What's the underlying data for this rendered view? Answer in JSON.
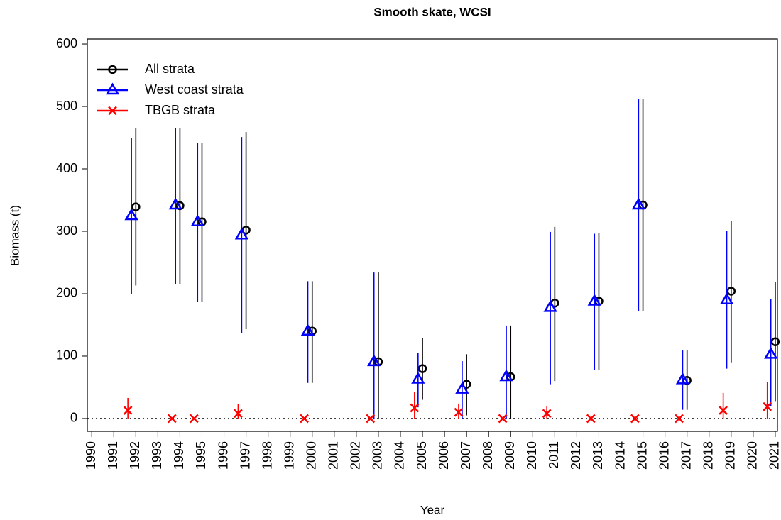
{
  "chart_data": {
    "type": "scatter",
    "title": "Smooth skate, WCSI",
    "x_label": "Year",
    "y_label": "Biomass (t)",
    "x": [
      1992,
      1994,
      1995,
      1997,
      2000,
      2003,
      2005,
      2007,
      2009,
      2011,
      2013,
      2015,
      2017,
      2019,
      2021
    ],
    "series": [
      {
        "name": "All strata",
        "color": "#000000",
        "marker": "circle",
        "values": [
          339,
          341,
          315,
          302,
          140,
          91,
          80,
          55,
          67,
          185,
          188,
          342,
          61,
          204,
          123
        ],
        "lower": [
          213,
          215,
          187,
          143,
          57,
          0,
          30,
          5,
          0,
          60,
          78,
          172,
          14,
          90,
          28
        ],
        "upper": [
          466,
          465,
          441,
          459,
          220,
          234,
          129,
          103,
          149,
          307,
          297,
          512,
          109,
          316,
          219
        ]
      },
      {
        "name": "West coast strata",
        "color": "#0000ff",
        "marker": "triangle",
        "values": [
          325,
          342,
          315,
          294,
          140,
          91,
          63,
          47,
          67,
          178,
          188,
          342,
          62,
          190,
          103
        ],
        "lower": [
          200,
          215,
          187,
          137,
          57,
          0,
          18,
          0,
          0,
          55,
          78,
          172,
          14,
          80,
          20
        ],
        "upper": [
          450,
          465,
          441,
          451,
          220,
          234,
          105,
          92,
          149,
          299,
          296,
          512,
          109,
          300,
          191
        ]
      },
      {
        "name": "TBGB strata",
        "color": "#ff0000",
        "marker": "x",
        "values": [
          13,
          0,
          0,
          8,
          0,
          0,
          17,
          10,
          0,
          8,
          0,
          0,
          0,
          13,
          19
        ],
        "lower": [
          0,
          0,
          0,
          0,
          0,
          0,
          0,
          0,
          0,
          0,
          0,
          0,
          0,
          0,
          0
        ],
        "upper": [
          33,
          0,
          0,
          23,
          0,
          0,
          42,
          24,
          0,
          20,
          0,
          0,
          0,
          41,
          59
        ]
      }
    ],
    "xlim": [
      1989.8,
      2021.1
    ],
    "ylim": [
      -20.5,
      608
    ],
    "xticks": [
      1990,
      1991,
      1992,
      1993,
      1994,
      1995,
      1996,
      1997,
      1998,
      1999,
      2000,
      2001,
      2002,
      2003,
      2004,
      2005,
      2006,
      2007,
      2008,
      2009,
      2010,
      2011,
      2012,
      2013,
      2014,
      2015,
      2016,
      2017,
      2018,
      2019,
      2020,
      2021
    ],
    "yticks": [
      0,
      100,
      200,
      300,
      400,
      500,
      600
    ],
    "reference_line": 0,
    "legend": "top-left"
  }
}
